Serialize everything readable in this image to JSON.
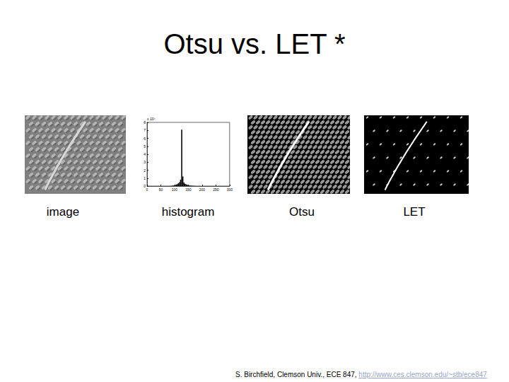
{
  "slide": {
    "title": "Otsu vs. LET *",
    "panels": [
      {
        "caption": "image",
        "kind": "gray"
      },
      {
        "caption": "histogram",
        "kind": "chart"
      },
      {
        "caption": "Otsu",
        "kind": "dense"
      },
      {
        "caption": "LET",
        "kind": "sparse"
      }
    ],
    "footer": {
      "text": "S. Birchfield, Clemson Univ., ECE 847, ",
      "link": "http://www.ces.clemson.edu/~stb/ece847"
    }
  },
  "chart_data": {
    "type": "histogram",
    "color": "#000000",
    "y_multiplier": "x 10⁴",
    "bins": [
      0,
      4,
      8,
      12,
      16,
      20,
      24,
      28,
      32,
      36,
      40,
      44,
      48,
      52,
      56,
      60,
      64,
      68,
      72,
      76,
      80,
      84,
      88,
      92,
      96,
      100,
      104,
      108,
      112,
      116,
      120,
      124,
      128,
      132,
      136,
      140,
      144,
      148,
      152,
      156,
      160,
      164,
      168,
      172,
      176,
      180,
      184,
      188,
      192,
      196,
      200,
      204,
      208,
      212,
      216,
      220,
      224,
      228,
      232,
      236,
      240,
      244,
      248,
      252,
      256
    ],
    "counts": [
      0,
      0,
      0,
      0,
      0,
      0,
      0,
      0,
      0,
      0,
      0,
      0,
      0,
      0,
      0,
      0,
      0,
      0,
      0,
      0,
      0.01,
      0.02,
      0.03,
      0.05,
      0.08,
      0.12,
      0.18,
      0.25,
      0.35,
      0.5,
      0.8,
      7.1,
      1.2,
      0.45,
      0.3,
      0.22,
      0.15,
      0.1,
      0.07,
      0.05,
      0.04,
      0.03,
      0.02,
      0.01,
      0,
      0,
      0,
      0,
      0,
      0,
      0,
      0,
      0,
      0,
      0,
      0,
      0,
      0,
      0,
      0,
      0,
      0,
      0,
      0
    ],
    "xlim": [
      0,
      300
    ],
    "xticks": [
      0,
      50,
      100,
      150,
      200,
      250,
      300
    ],
    "ylim": [
      0,
      8
    ],
    "yticks": [
      0,
      1,
      2,
      3,
      4,
      5,
      6,
      7,
      8
    ],
    "grid": false
  }
}
